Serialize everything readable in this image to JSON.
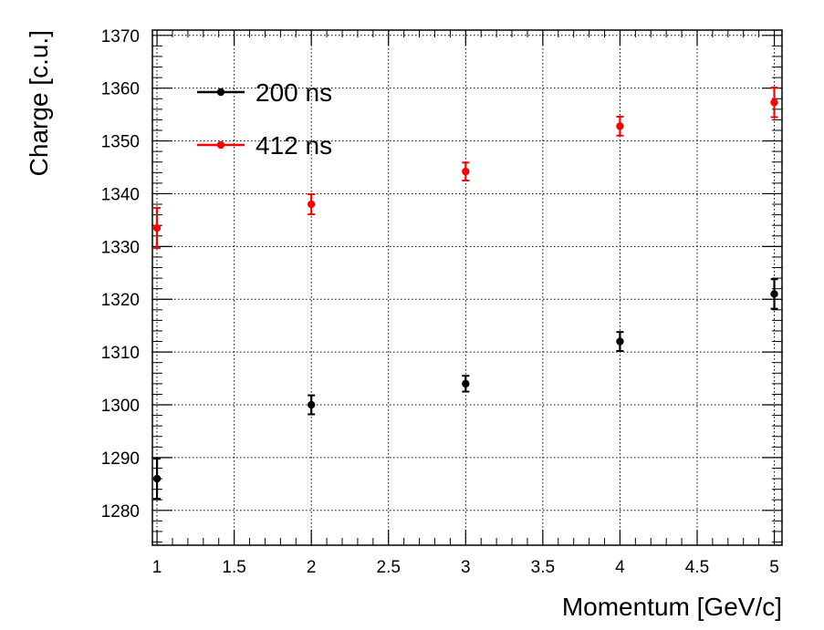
{
  "chart_data": {
    "type": "scatter",
    "title": "",
    "xlabel": "Momentum [GeV/c]",
    "ylabel": "Charge [c.u.]",
    "xlim": [
      0.97,
      5.05
    ],
    "ylim": [
      1273.4,
      1371
    ],
    "x_ticks": [
      "1",
      "1.5",
      "2",
      "2.5",
      "3",
      "3.5",
      "4",
      "4.5",
      "5"
    ],
    "y_ticks": [
      "1280",
      "1290",
      "1300",
      "1310",
      "1320",
      "1330",
      "1340",
      "1350",
      "1360",
      "1370"
    ],
    "grid": true,
    "legend_position": "top-left",
    "series": [
      {
        "name": "200 ns",
        "color": "#000000",
        "points": [
          {
            "x": 1,
            "y": 1286.0,
            "err": 3.8
          },
          {
            "x": 2,
            "y": 1300.0,
            "err": 1.8
          },
          {
            "x": 3,
            "y": 1304.0,
            "err": 1.5
          },
          {
            "x": 4,
            "y": 1312.0,
            "err": 1.8
          },
          {
            "x": 5,
            "y": 1321.0,
            "err": 2.8
          }
        ]
      },
      {
        "name": "412 ns",
        "color": "#ff0000",
        "points": [
          {
            "x": 1,
            "y": 1333.5,
            "err": 3.8
          },
          {
            "x": 2,
            "y": 1338.0,
            "err": 1.9
          },
          {
            "x": 3,
            "y": 1344.2,
            "err": 1.7
          },
          {
            "x": 4,
            "y": 1352.8,
            "err": 1.8
          },
          {
            "x": 5,
            "y": 1357.3,
            "err": 2.8
          }
        ]
      }
    ]
  }
}
